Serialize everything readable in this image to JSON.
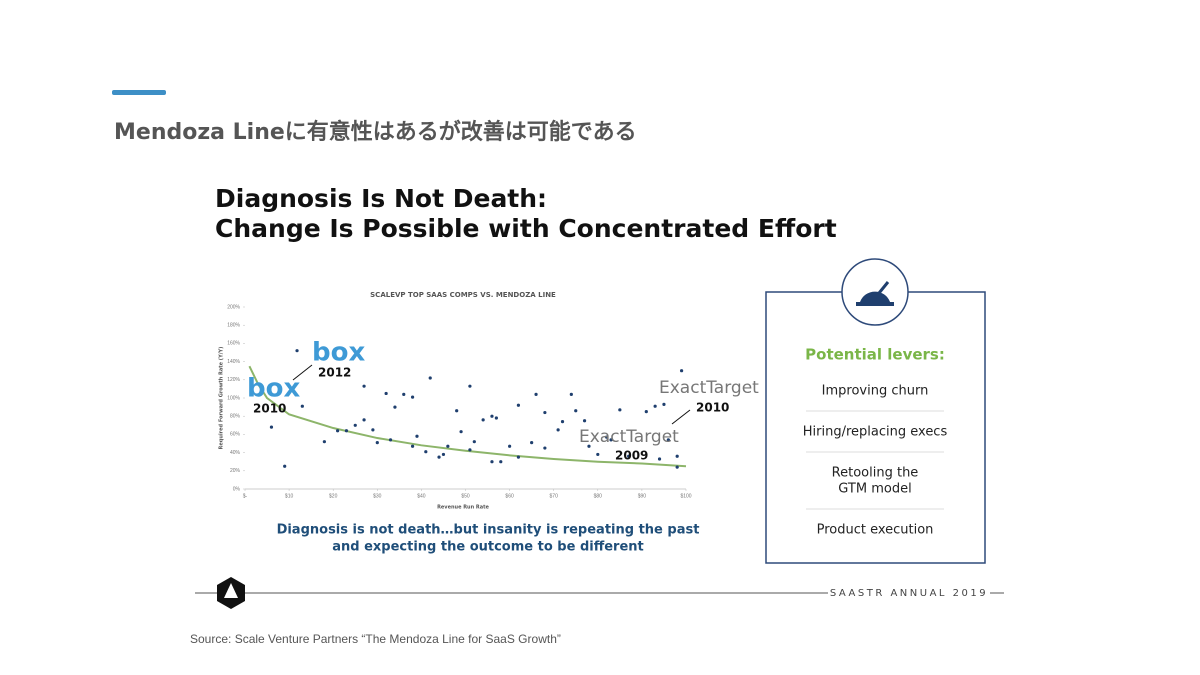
{
  "header": {
    "title": "Mendoza Lineに有意性はあるが改善は可能である"
  },
  "slide": {
    "heading_lines": [
      "Diagnosis Is Not Death:",
      "Change Is Possible with Concentrated Effort"
    ],
    "caption_lines": [
      "Diagnosis is not death…but insanity is repeating the past",
      "and expecting the outcome to be different"
    ]
  },
  "chart_data": {
    "type": "scatter",
    "title": "SCALEVP TOP SAAS COMPS VS. MENDOZA LINE",
    "x_label": "Revenue Run Rate",
    "y_label": "Required Forward Growth Rate (Y/Y)",
    "xlim": [
      0,
      100
    ],
    "ylim": [
      0,
      200
    ],
    "xticks": [
      {
        "value": 0,
        "label": "$-"
      },
      {
        "value": 10,
        "label": "$10"
      },
      {
        "value": 20,
        "label": "$20"
      },
      {
        "value": 30,
        "label": "$30"
      },
      {
        "value": 40,
        "label": "$40"
      },
      {
        "value": 50,
        "label": "$50"
      },
      {
        "value": 60,
        "label": "$60"
      },
      {
        "value": 70,
        "label": "$70"
      },
      {
        "value": 80,
        "label": "$80"
      },
      {
        "value": 90,
        "label": "$90"
      },
      {
        "value": 100,
        "label": "$100"
      }
    ],
    "yticks": [
      {
        "value": 0,
        "label": "0%"
      },
      {
        "value": 20,
        "label": "20%"
      },
      {
        "value": 40,
        "label": "40%"
      },
      {
        "value": 60,
        "label": "60%"
      },
      {
        "value": 80,
        "label": "80%"
      },
      {
        "value": 100,
        "label": "100%"
      },
      {
        "value": 120,
        "label": "120%"
      },
      {
        "value": 140,
        "label": "140%"
      },
      {
        "value": 160,
        "label": "160%"
      },
      {
        "value": 180,
        "label": "180%"
      },
      {
        "value": 200,
        "label": "200%"
      }
    ],
    "series": [
      {
        "color": "#1f3f6e",
        "x": [
          11.8,
          9,
          6,
          13,
          18,
          21,
          23,
          25,
          27,
          27,
          29,
          30,
          32,
          33,
          34,
          36,
          38,
          39,
          42,
          44,
          46,
          48,
          49,
          51,
          52,
          54,
          56,
          57,
          58,
          60,
          62,
          62,
          65,
          66,
          68,
          71,
          72,
          74,
          75,
          77,
          78,
          80,
          82,
          83,
          85,
          87,
          91,
          93,
          95,
          96,
          98,
          99,
          98,
          94,
          51,
          56,
          68,
          41,
          45,
          38
        ],
        "values": [
          152,
          25,
          68,
          91,
          52,
          64,
          64,
          70,
          113,
          76,
          65,
          51,
          105,
          54,
          90,
          104,
          101,
          58,
          122,
          35,
          47,
          86,
          63,
          113,
          52,
          76,
          80,
          78,
          30,
          47,
          35,
          92,
          51,
          104,
          84,
          65,
          74,
          104,
          86,
          75,
          47,
          38,
          57,
          54,
          87,
          36,
          85,
          91,
          93,
          54,
          24,
          130,
          36,
          33,
          43,
          30,
          45,
          41,
          38,
          47
        ]
      }
    ],
    "trend": {
      "color": "#8db56a",
      "x": [
        1,
        3,
        5,
        10,
        20,
        30,
        40,
        50,
        60,
        70,
        80,
        90,
        100
      ],
      "values": [
        135,
        115,
        100,
        82,
        67,
        56,
        48,
        42,
        37,
        33,
        30,
        28,
        25
      ]
    }
  },
  "annotations": [
    {
      "logo": "box",
      "year": "2012"
    },
    {
      "logo": "box",
      "year": "2010"
    },
    {
      "logo": "ExactTarget",
      "year": "2010"
    },
    {
      "logo": "ExactTarget",
      "year": "2009"
    }
  ],
  "panel": {
    "title": "Potential levers:",
    "items": [
      "Improving churn",
      "Hiring/replacing execs",
      [
        "Retooling the",
        "GTM model"
      ],
      "Product execution"
    ]
  },
  "footer": {
    "event": "SAASTR ANNUAL 2019"
  },
  "source": "Source: Scale Venture Partners “The Mendoza Line for SaaS Growth”"
}
